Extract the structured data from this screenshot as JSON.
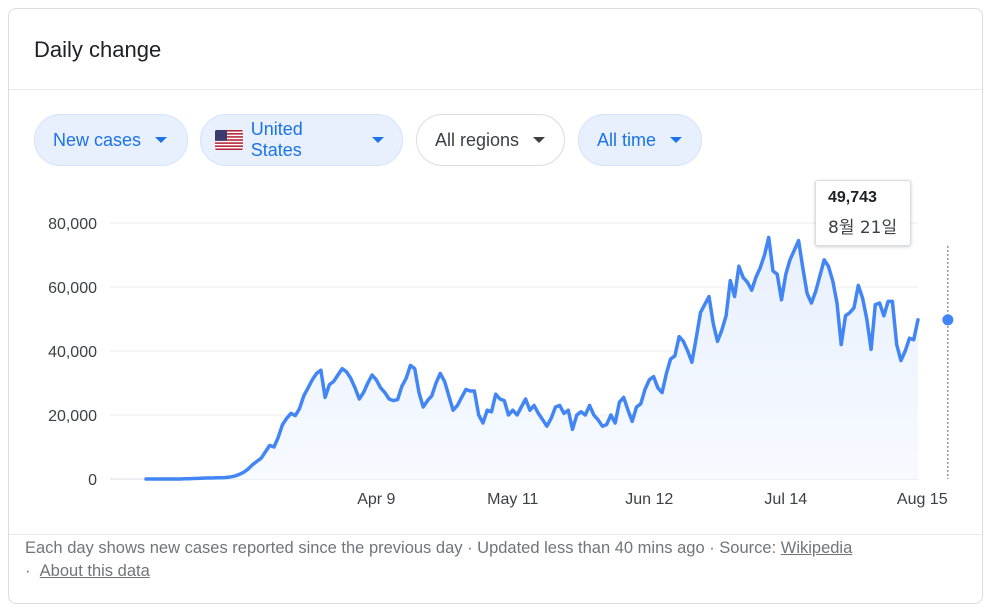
{
  "card": {
    "title": "Daily change"
  },
  "filters": [
    {
      "label": "New cases",
      "style": "blue"
    },
    {
      "label": "United States",
      "style": "blue",
      "icon": "us-flag-icon"
    },
    {
      "label": "All regions",
      "style": "grey"
    },
    {
      "label": "All time",
      "style": "blue"
    }
  ],
  "tooltip": {
    "value": "49,743",
    "date": "8월 21일"
  },
  "footer": {
    "text": "Each day shows new cases reported since the previous day · Updated less than 40 mins ago  ·  Source: ",
    "source_link": "Wikipedia",
    "separator": "·",
    "about_link": "About this data"
  },
  "colors": {
    "line": "#4285f4",
    "fill": "#e8f0fe",
    "accent": "#1a73e8"
  },
  "chart_data": {
    "type": "area",
    "title": "",
    "xlabel": "",
    "ylabel": "",
    "ylim": [
      0,
      80000
    ],
    "yticks": [
      0,
      20000,
      40000,
      60000,
      80000
    ],
    "ytick_labels": [
      "0",
      "20,000",
      "40,000",
      "60,000",
      "80,000"
    ],
    "xtick_labels": [
      "Apr 9",
      "May 11",
      "Jun 12",
      "Jul 14",
      "Aug 15"
    ],
    "xtick_dates": [
      "2020-04-09",
      "2020-05-11",
      "2020-06-12",
      "2020-07-14",
      "2020-08-15"
    ],
    "grid": true,
    "highlight": {
      "date": "2020-08-21",
      "value": 49743
    },
    "series": [
      {
        "start_date": "2020-02-15",
        "values": [
          0,
          0,
          0,
          0,
          0,
          0,
          0,
          0,
          0,
          100,
          100,
          150,
          200,
          250,
          300,
          300,
          350,
          400,
          400,
          500,
          700,
          1000,
          1500,
          2200,
          3200,
          4500,
          5500,
          6500,
          8500,
          10500,
          10000,
          13000,
          17000,
          19000,
          20500,
          19800,
          22000,
          26000,
          28500,
          31000,
          33000,
          34000,
          25500,
          29500,
          30500,
          32500,
          34500,
          33500,
          31500,
          28500,
          25000,
          27000,
          30000,
          32500,
          31000,
          28500,
          27000,
          25000,
          24500,
          24800,
          29000,
          31500,
          35500,
          34500,
          27000,
          22500,
          24500,
          26000,
          30000,
          33000,
          30500,
          26000,
          21500,
          23000,
          25500,
          28000,
          27500,
          27500,
          20000,
          17500,
          21500,
          21000,
          26500,
          25000,
          24500,
          20000,
          21500,
          20000,
          22500,
          25000,
          21500,
          23000,
          20500,
          18500,
          16500,
          19000,
          22500,
          23000,
          20500,
          21500,
          15500,
          20000,
          21000,
          20000,
          23000,
          20000,
          18500,
          16500,
          17000,
          20000,
          17500,
          24000,
          25500,
          21500,
          18000,
          22500,
          23500,
          28000,
          31000,
          32000,
          28500,
          27000,
          33000,
          37500,
          38500,
          44500,
          43000,
          40000,
          36500,
          44000,
          52000,
          54500,
          57000,
          48500,
          43000,
          46500,
          51000,
          62000,
          57000,
          66500,
          63000,
          61500,
          59000,
          63000,
          66000,
          70000,
          75500,
          65000,
          64000,
          56000,
          64000,
          68500,
          71500,
          74500,
          66000,
          58000,
          55000,
          58500,
          63500,
          68500,
          66500,
          62000,
          55000,
          42000,
          51000,
          52000,
          53500,
          60500,
          56500,
          50000,
          40500,
          54500,
          55000,
          51000,
          55500,
          55500,
          42000,
          37000,
          40000,
          44000,
          43500,
          49743
        ]
      }
    ]
  }
}
